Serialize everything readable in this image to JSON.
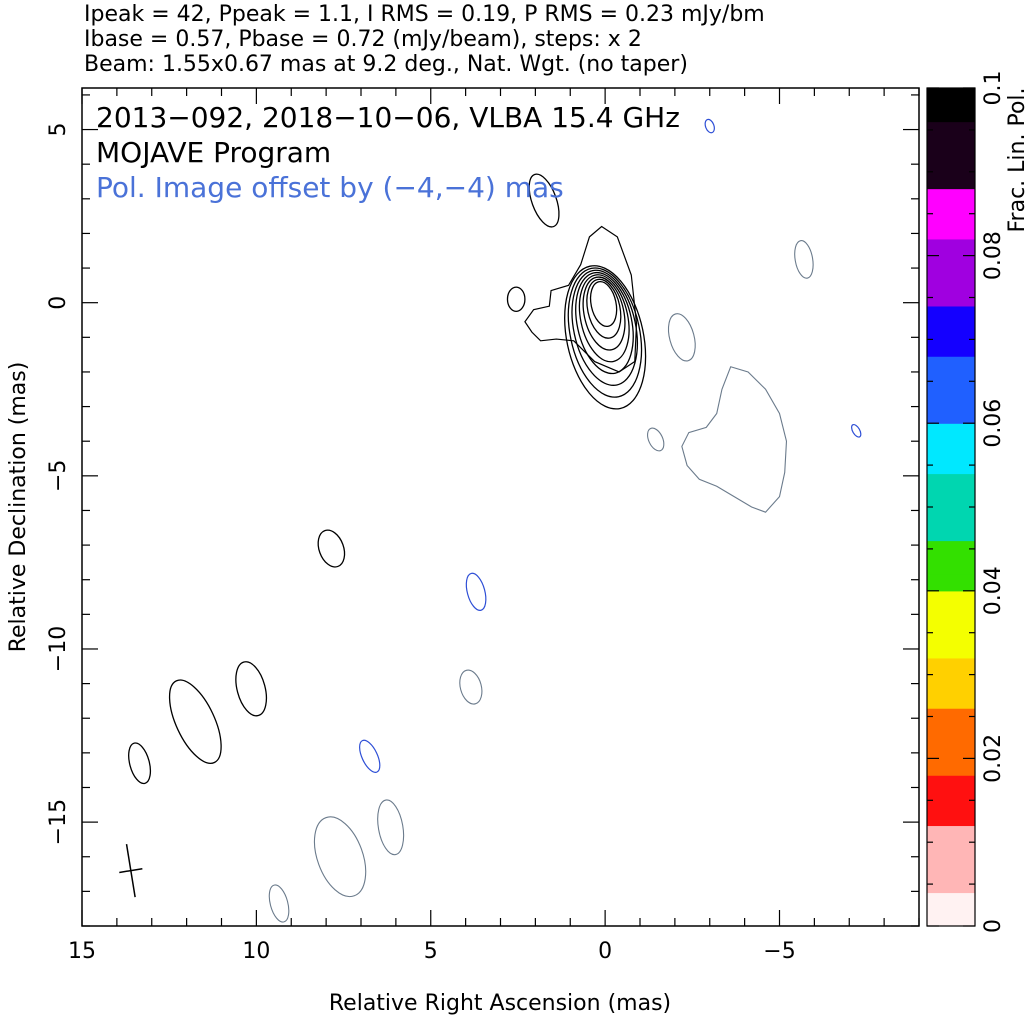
{
  "header": {
    "line1": "Ipeak = 42, Ppeak = 1.1, I RMS = 0.19, P RMS = 0.23 mJy/bm",
    "line2": "Ibase = 0.57, Pbase = 0.72 (mJy/beam), steps: x 2",
    "line3": "Beam: 1.55x0.67 mas at 9.2 deg., Nat. Wgt. (no taper)"
  },
  "annotations": {
    "line1": "2013−092, 2018−10−06, VLBA 15.4 GHz",
    "line2": "MOJAVE Program",
    "line3": "Pol. Image offset by (−4,−4) mas",
    "line3_color": "#4a72d8"
  },
  "colors": {
    "total_intensity": "#000000",
    "polarization": "#6b7b8c",
    "pol_small": "#2e4fd6"
  },
  "chart_data": {
    "type": "contour",
    "xlabel": "Relative Right Ascension (mas)",
    "ylabel": "Relative Declination (mas)",
    "xlim": [
      15.0,
      -9.0
    ],
    "ylim": [
      -18.0,
      6.2
    ],
    "x_ticks": [
      15,
      10,
      5,
      0,
      -5
    ],
    "x_tick_labels": [
      "15",
      "10",
      "5",
      "0",
      "−5"
    ],
    "y_ticks": [
      5,
      0,
      -5,
      -10,
      -15
    ],
    "y_tick_labels": [
      "5",
      "0",
      "−5",
      "−10",
      "−15"
    ],
    "core": {
      "x": 0.0,
      "y": 0.1,
      "levels": 8,
      "peak_mJy_per_beam": 42
    },
    "beam": {
      "x": 13.6,
      "y": -16.4,
      "major_mas": 1.55,
      "minor_mas": 0.67,
      "pa_deg": 9.2
    },
    "stokes_i_blobs": [
      {
        "x": 1.75,
        "y": 2.95,
        "w": 0.35,
        "h": 0.8,
        "angle": -20
      },
      {
        "x": 2.55,
        "y": 0.1,
        "w": 0.25,
        "h": 0.35,
        "angle": 0
      },
      {
        "x": 7.85,
        "y": -7.1,
        "w": 0.35,
        "h": 0.55,
        "angle": -20
      },
      {
        "x": 10.15,
        "y": -11.15,
        "w": 0.4,
        "h": 0.8,
        "angle": -15
      },
      {
        "x": 11.75,
        "y": -12.1,
        "w": 0.55,
        "h": 1.3,
        "angle": -25
      },
      {
        "x": 13.35,
        "y": -13.3,
        "w": 0.28,
        "h": 0.6,
        "angle": -15
      }
    ],
    "pol_contours": [
      {
        "x": -2.2,
        "y": -1.0,
        "w": 0.35,
        "h": 0.7,
        "angle": -15
      },
      {
        "x": -5.7,
        "y": 1.25,
        "w": 0.25,
        "h": 0.55,
        "angle": -10
      },
      {
        "x": -1.45,
        "y": -3.95,
        "w": 0.2,
        "h": 0.35,
        "angle": -25
      },
      {
        "x": 3.85,
        "y": -11.1,
        "w": 0.3,
        "h": 0.5,
        "angle": -15
      },
      {
        "x": 6.15,
        "y": -15.15,
        "w": 0.35,
        "h": 0.8,
        "angle": -10
      },
      {
        "x": 7.6,
        "y": -16.0,
        "w": 0.65,
        "h": 1.2,
        "angle": -20
      },
      {
        "x": 9.35,
        "y": -17.35,
        "w": 0.25,
        "h": 0.55,
        "angle": -15
      }
    ],
    "pol_small": [
      {
        "x": 3.7,
        "y": -8.35,
        "w": 0.25,
        "h": 0.55,
        "angle": -15
      },
      {
        "x": 6.75,
        "y": -13.1,
        "w": 0.22,
        "h": 0.5,
        "angle": -25
      },
      {
        "x": -7.2,
        "y": -3.7,
        "w": 0.1,
        "h": 0.2,
        "angle": -30
      },
      {
        "x": -3.0,
        "y": 5.1,
        "w": 0.12,
        "h": 0.2,
        "angle": -20
      }
    ],
    "pol_extended": [
      [
        -3.6,
        -1.85
      ],
      [
        -4.1,
        -2.0
      ],
      [
        -4.6,
        -2.5
      ],
      [
        -5.0,
        -3.2
      ],
      [
        -5.2,
        -4.0
      ],
      [
        -5.15,
        -4.9
      ],
      [
        -5.0,
        -5.6
      ],
      [
        -4.6,
        -6.05
      ],
      [
        -4.2,
        -5.9
      ],
      [
        -3.7,
        -5.6
      ],
      [
        -3.2,
        -5.3
      ],
      [
        -2.7,
        -5.1
      ],
      [
        -2.35,
        -4.7
      ],
      [
        -2.2,
        -4.15
      ],
      [
        -2.4,
        -3.75
      ],
      [
        -2.9,
        -3.6
      ],
      [
        -3.2,
        -3.2
      ],
      [
        -3.35,
        -2.5
      ]
    ],
    "colorbar": {
      "label": "Frac. Lin. Pol.",
      "range": [
        0.0,
        0.1
      ],
      "ticks": [
        0,
        0.02,
        0.04,
        0.06,
        0.08,
        0.1
      ],
      "tick_labels": [
        "0",
        "0.02",
        "0.04",
        "0.06",
        "0.08",
        "0.1"
      ],
      "stops": [
        "#fff2f2",
        "#ffb6b6",
        "#ff1010",
        "#ff6a00",
        "#ffd000",
        "#f4ff00",
        "#33e000",
        "#00d6b0",
        "#00e8ff",
        "#2060ff",
        "#1400ff",
        "#a000e0",
        "#ff00ff",
        "#1a001a",
        "#000000"
      ]
    }
  }
}
